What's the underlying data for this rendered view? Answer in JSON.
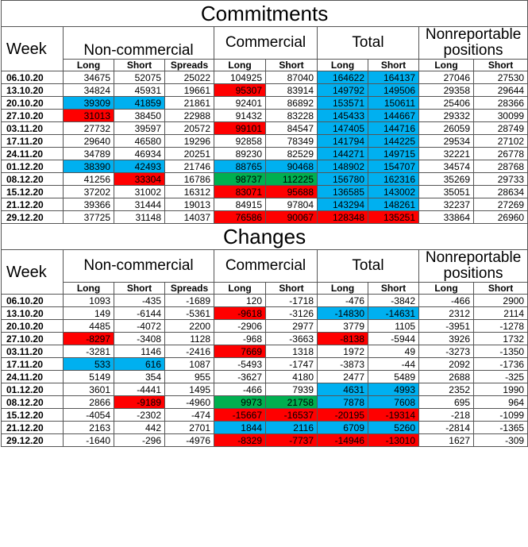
{
  "colors": {
    "blue": "#00b0f0",
    "red": "#ff0000",
    "green": "#00b050"
  },
  "headers": {
    "week": "Week",
    "noncommercial": "Non-commercial",
    "commercial": "Commercial",
    "total": "Total",
    "nonreportable": "Nonreportable positions",
    "sub": [
      "Long",
      "Short",
      "Spreads",
      "Long",
      "Short",
      "Long",
      "Short",
      "Long",
      "Short"
    ]
  },
  "commitments": {
    "title": "Commitments",
    "rows": [
      {
        "date": "06.10.20",
        "values": [
          "34675",
          "52075",
          "25022",
          "104925",
          "87040",
          "164622",
          "164137",
          "27046",
          "27530"
        ],
        "colors": [
          "",
          "",
          "",
          "",
          "",
          "blue",
          "blue",
          "",
          ""
        ]
      },
      {
        "date": "13.10.20",
        "values": [
          "34824",
          "45931",
          "19661",
          "95307",
          "83914",
          "149792",
          "149506",
          "29358",
          "29644"
        ],
        "colors": [
          "",
          "",
          "",
          "red",
          "",
          "blue",
          "blue",
          "",
          ""
        ]
      },
      {
        "date": "20.10.20",
        "values": [
          "39309",
          "41859",
          "21861",
          "92401",
          "86892",
          "153571",
          "150611",
          "25406",
          "28366"
        ],
        "colors": [
          "blue",
          "blue",
          "",
          "",
          "",
          "blue",
          "blue",
          "",
          ""
        ]
      },
      {
        "date": "27.10.20",
        "values": [
          "31013",
          "38450",
          "22988",
          "91432",
          "83228",
          "145433",
          "144667",
          "29332",
          "30099"
        ],
        "colors": [
          "red",
          "",
          "",
          "",
          "",
          "blue",
          "blue",
          "",
          ""
        ]
      },
      {
        "date": "03.11.20",
        "values": [
          "27732",
          "39597",
          "20572",
          "99101",
          "84547",
          "147405",
          "144716",
          "26059",
          "28749"
        ],
        "colors": [
          "",
          "",
          "",
          "red",
          "",
          "blue",
          "blue",
          "",
          ""
        ]
      },
      {
        "date": "17.11.20",
        "values": [
          "29640",
          "46580",
          "19296",
          "92858",
          "78349",
          "141794",
          "144225",
          "29534",
          "27102"
        ],
        "colors": [
          "",
          "",
          "",
          "",
          "",
          "blue",
          "blue",
          "",
          ""
        ]
      },
      {
        "date": "24.11.20",
        "values": [
          "34789",
          "46934",
          "20251",
          "89230",
          "82529",
          "144271",
          "149715",
          "32221",
          "26778"
        ],
        "colors": [
          "",
          "",
          "",
          "",
          "",
          "blue",
          "blue",
          "",
          ""
        ]
      },
      {
        "date": "01.12.20",
        "values": [
          "38390",
          "42493",
          "21746",
          "88765",
          "90468",
          "148902",
          "154707",
          "34574",
          "28768"
        ],
        "colors": [
          "blue",
          "blue",
          "",
          "blue",
          "blue",
          "blue",
          "blue",
          "",
          ""
        ]
      },
      {
        "date": "08.12.20",
        "values": [
          "41256",
          "33304",
          "16786",
          "98737",
          "112225",
          "156780",
          "162316",
          "35269",
          "29733"
        ],
        "colors": [
          "",
          "red",
          "",
          "green",
          "green",
          "blue",
          "blue",
          "",
          ""
        ]
      },
      {
        "date": "15.12.20",
        "values": [
          "37202",
          "31002",
          "16312",
          "83071",
          "95688",
          "136585",
          "143002",
          "35051",
          "28634"
        ],
        "colors": [
          "",
          "",
          "",
          "red",
          "red",
          "blue",
          "blue",
          "",
          ""
        ]
      },
      {
        "date": "21.12.20",
        "values": [
          "39366",
          "31444",
          "19013",
          "84915",
          "97804",
          "143294",
          "148261",
          "32237",
          "27269"
        ],
        "colors": [
          "",
          "",
          "",
          "",
          "",
          "blue",
          "blue",
          "",
          ""
        ]
      },
      {
        "date": "29.12.20",
        "values": [
          "37725",
          "31148",
          "14037",
          "76586",
          "90067",
          "128348",
          "135251",
          "33864",
          "26960"
        ],
        "colors": [
          "",
          "",
          "",
          "red",
          "red",
          "red",
          "red",
          "",
          ""
        ]
      }
    ]
  },
  "changes": {
    "title": "Changes",
    "rows": [
      {
        "date": "06.10.20",
        "values": [
          "1093",
          "-435",
          "-1689",
          "120",
          "-1718",
          "-476",
          "-3842",
          "-466",
          "2900"
        ],
        "colors": [
          "",
          "",
          "",
          "",
          "",
          "",
          "",
          "",
          ""
        ]
      },
      {
        "date": "13.10.20",
        "values": [
          "149",
          "-6144",
          "-5361",
          "-9618",
          "-3126",
          "-14830",
          "-14631",
          "2312",
          "2114"
        ],
        "colors": [
          "",
          "",
          "",
          "red",
          "",
          "blue",
          "blue",
          "",
          ""
        ]
      },
      {
        "date": "20.10.20",
        "values": [
          "4485",
          "-4072",
          "2200",
          "-2906",
          "2977",
          "3779",
          "1105",
          "-3951",
          "-1278"
        ],
        "colors": [
          "",
          "",
          "",
          "",
          "",
          "",
          "",
          "",
          ""
        ]
      },
      {
        "date": "27.10.20",
        "values": [
          "-8297",
          "-3408",
          "1128",
          "-968",
          "-3663",
          "-8138",
          "-5944",
          "3926",
          "1732"
        ],
        "colors": [
          "red",
          "",
          "",
          "",
          "",
          "red",
          "",
          "",
          ""
        ]
      },
      {
        "date": "03.11.20",
        "values": [
          "-3281",
          "1146",
          "-2416",
          "7669",
          "1318",
          "1972",
          "49",
          "-3273",
          "-1350"
        ],
        "colors": [
          "",
          "",
          "",
          "red",
          "",
          "",
          "",
          "",
          ""
        ]
      },
      {
        "date": "17.11.20",
        "values": [
          "533",
          "616",
          "1087",
          "-5493",
          "-1747",
          "-3873",
          "-44",
          "2092",
          "-1736"
        ],
        "colors": [
          "blue",
          "blue",
          "",
          "",
          "",
          "",
          "",
          "",
          ""
        ]
      },
      {
        "date": "24.11.20",
        "values": [
          "5149",
          "354",
          "955",
          "-3627",
          "4180",
          "2477",
          "5489",
          "2688",
          "-325"
        ],
        "colors": [
          "",
          "",
          "",
          "",
          "",
          "",
          "",
          "",
          ""
        ]
      },
      {
        "date": "01.12.20",
        "values": [
          "3601",
          "-4441",
          "1495",
          "-466",
          "7939",
          "4631",
          "4993",
          "2352",
          "1990"
        ],
        "colors": [
          "",
          "",
          "",
          "",
          "",
          "blue",
          "blue",
          "",
          ""
        ]
      },
      {
        "date": "08.12.20",
        "values": [
          "2866",
          "-9189",
          "-4960",
          "9973",
          "21758",
          "7878",
          "7608",
          "695",
          "964"
        ],
        "colors": [
          "",
          "red",
          "",
          "green",
          "green",
          "blue",
          "blue",
          "",
          ""
        ]
      },
      {
        "date": "15.12.20",
        "values": [
          "-4054",
          "-2302",
          "-474",
          "-15667",
          "-16537",
          "-20195",
          "-19314",
          "-218",
          "-1099"
        ],
        "colors": [
          "",
          "",
          "",
          "red",
          "red",
          "red",
          "red",
          "",
          ""
        ]
      },
      {
        "date": "21.12.20",
        "values": [
          "2163",
          "442",
          "2701",
          "1844",
          "2116",
          "6709",
          "5260",
          "-2814",
          "-1365"
        ],
        "colors": [
          "",
          "",
          "",
          "blue",
          "blue",
          "blue",
          "blue",
          "",
          ""
        ]
      },
      {
        "date": "29.12.20",
        "values": [
          "-1640",
          "-296",
          "-4976",
          "-8329",
          "-7737",
          "-14946",
          "-13010",
          "1627",
          "-309"
        ],
        "colors": [
          "",
          "",
          "",
          "red",
          "red",
          "red",
          "red",
          "",
          ""
        ]
      }
    ]
  }
}
